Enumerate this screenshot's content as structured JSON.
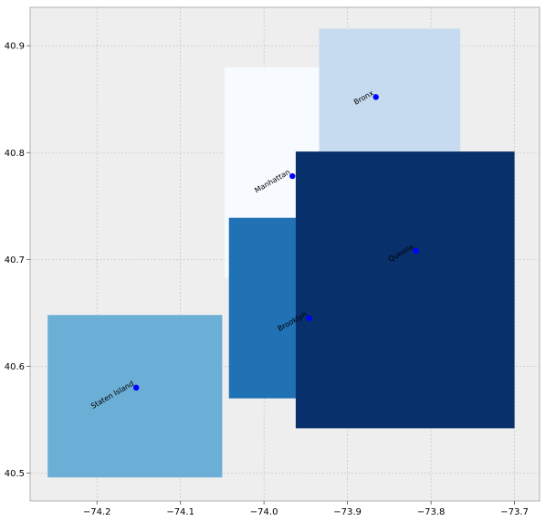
{
  "chart_data": {
    "type": "map",
    "title": "",
    "xlabel": "",
    "ylabel": "",
    "xlim": [
      -74.28,
      -73.67
    ],
    "ylim": [
      40.474,
      40.936
    ],
    "xticks": [
      -74.2,
      -74.1,
      -74.0,
      -73.9,
      -73.8,
      -73.7
    ],
    "xtick_labels": [
      "−74.2",
      "−74.1",
      "−74.0",
      "−73.9",
      "−73.8",
      "−73.7"
    ],
    "yticks": [
      40.5,
      40.6,
      40.7,
      40.8,
      40.9
    ],
    "ytick_labels": [
      "40.5",
      "40.6",
      "40.7",
      "40.8",
      "40.9"
    ],
    "grid": true,
    "background_color": "#eeeeee",
    "point_color": "#0000ff",
    "regions": [
      {
        "name": "Manhattan",
        "x0": -74.047,
        "x1": -73.907,
        "y0": 40.683,
        "y1": 40.88,
        "color": "#f7fbff"
      },
      {
        "name": "Bronx",
        "x0": -73.934,
        "x1": -73.765,
        "y0": 40.785,
        "y1": 40.916,
        "color": "#c6dbef"
      },
      {
        "name": "Staten Island",
        "x0": -74.259,
        "x1": -74.05,
        "y0": 40.496,
        "y1": 40.648,
        "color": "#6baed6"
      },
      {
        "name": "Brooklyn",
        "x0": -74.042,
        "x1": -73.834,
        "y0": 40.57,
        "y1": 40.739,
        "color": "#2171b5"
      },
      {
        "name": "Queens",
        "x0": -73.962,
        "x1": -73.7,
        "y0": 40.542,
        "y1": 40.801,
        "color": "#08306b"
      }
    ],
    "points": [
      {
        "label": "Manhattan",
        "x": -73.966,
        "y": 40.778
      },
      {
        "label": "Bronx",
        "x": -73.866,
        "y": 40.852
      },
      {
        "label": "Queens",
        "x": -73.818,
        "y": 40.708
      },
      {
        "label": "Brooklyn",
        "x": -73.946,
        "y": 40.645
      },
      {
        "label": "Staten Island",
        "x": -74.153,
        "y": 40.58
      }
    ]
  }
}
